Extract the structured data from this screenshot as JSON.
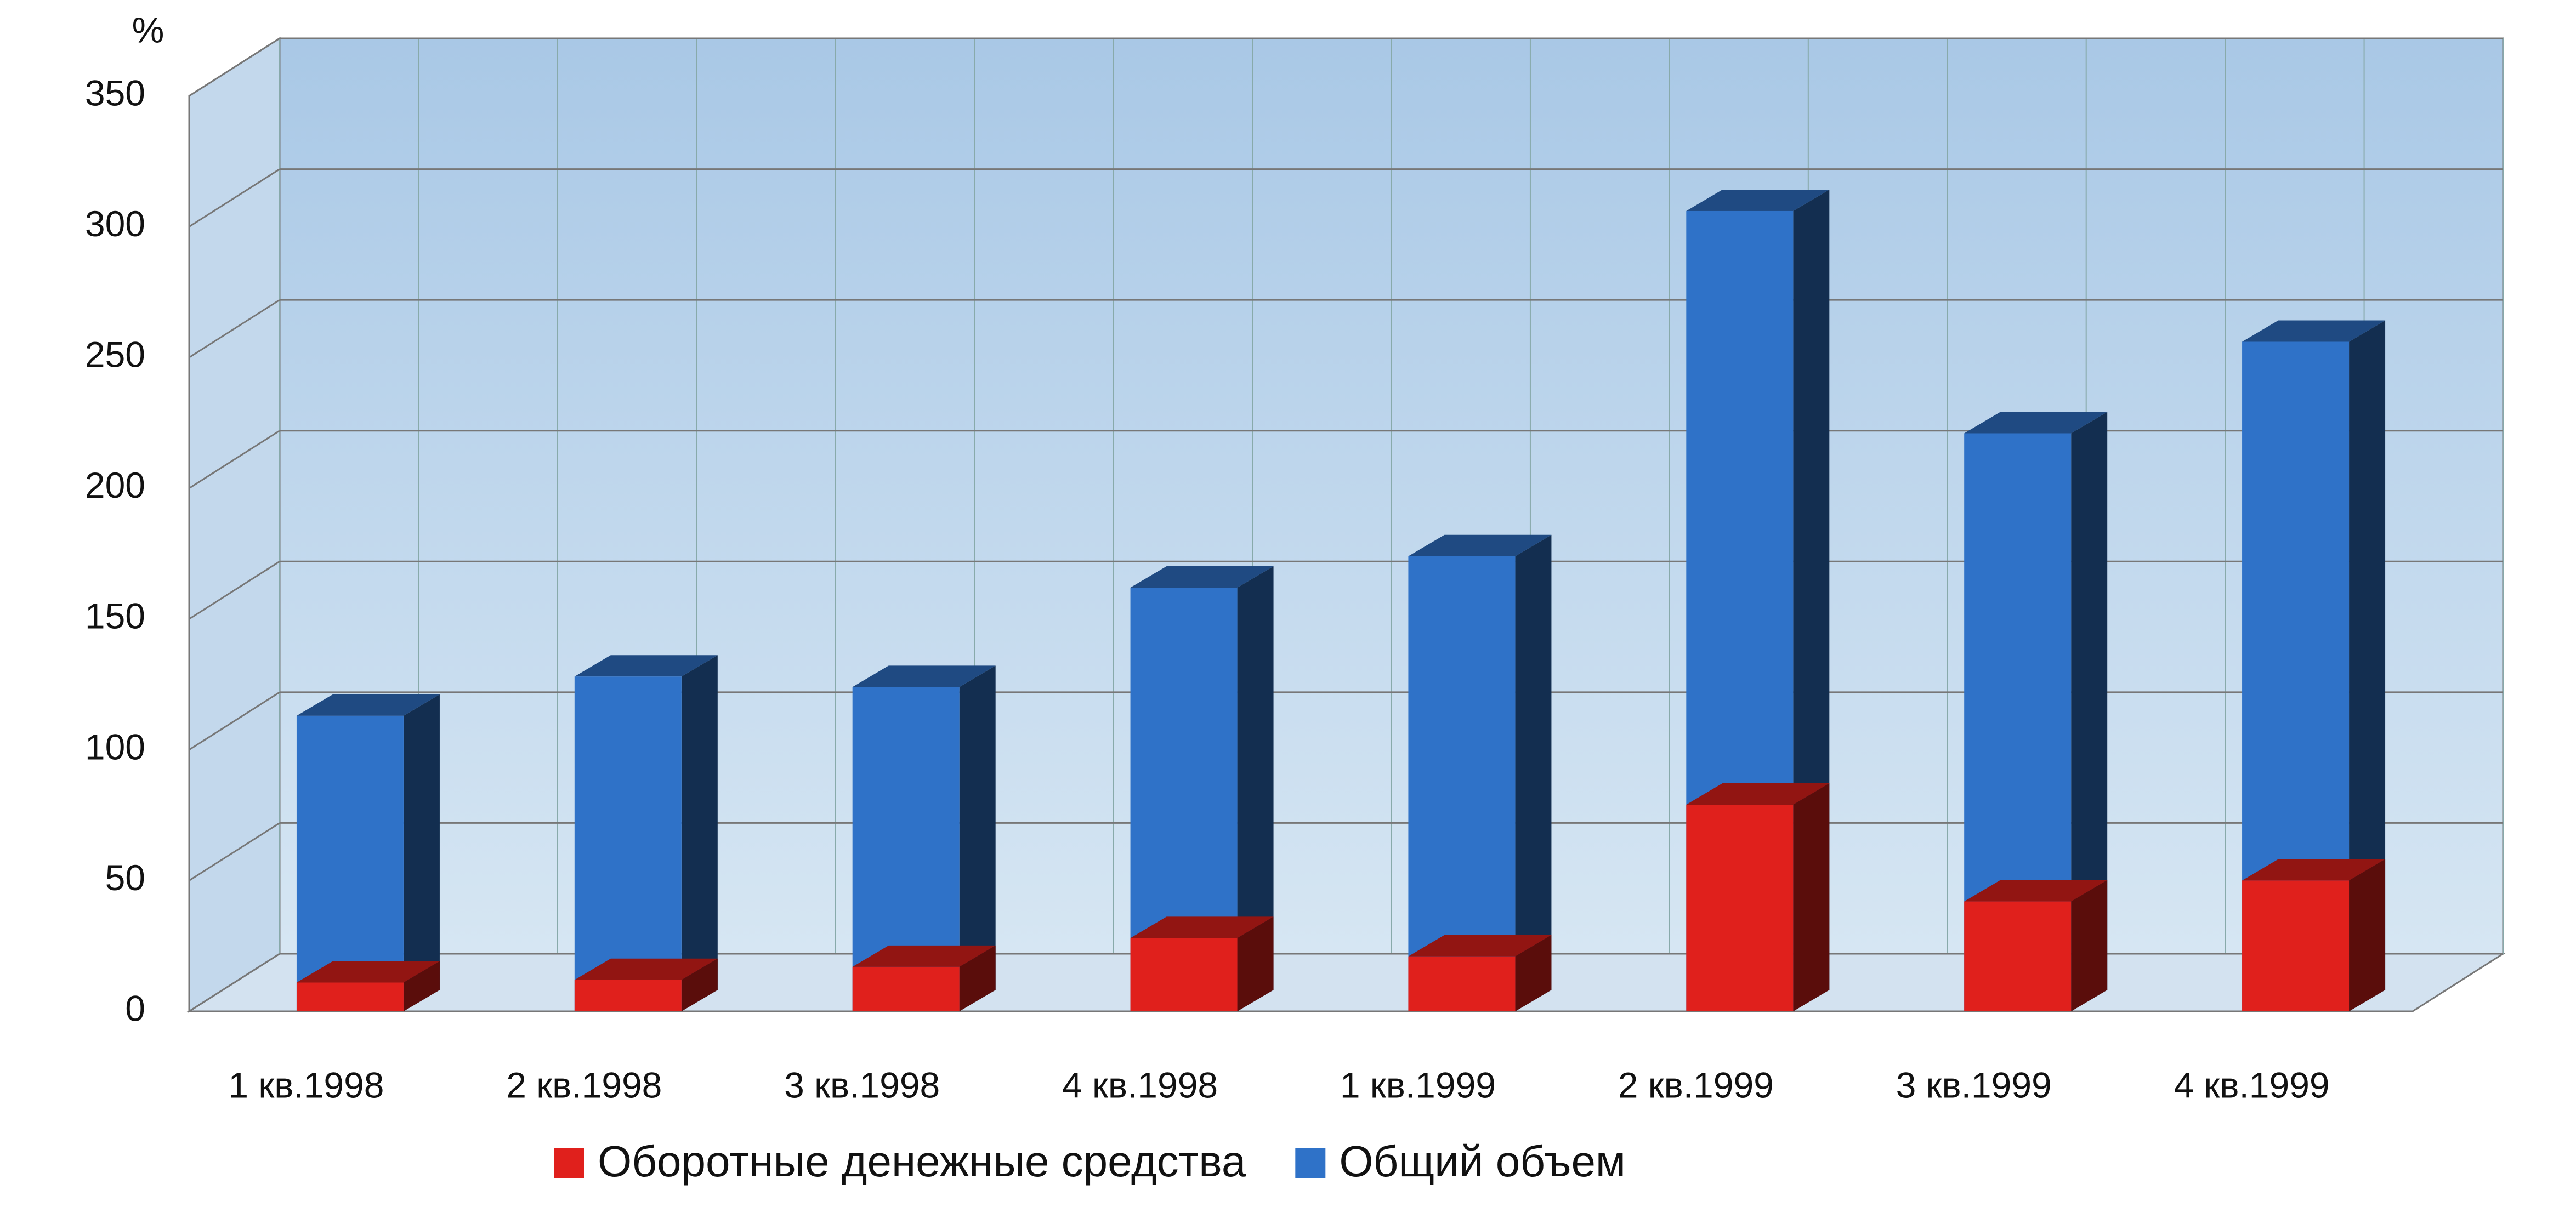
{
  "chart_data": {
    "type": "bar",
    "y_unit": "%",
    "categories": [
      "1 кв.1998",
      "2 кв.1998",
      "3 кв.1998",
      "4 кв.1998",
      "1 кв.1999",
      "2 кв.1999",
      "3 кв.1999",
      "4 кв.1999"
    ],
    "series": [
      {
        "name": "Оборотные денежные средства",
        "color": "#e0201c",
        "values": [
          11,
          12,
          17,
          28,
          21,
          79,
          42,
          50
        ]
      },
      {
        "name": "Общий объем",
        "color": "#2f72c8",
        "values": [
          113,
          128,
          124,
          162,
          174,
          306,
          221,
          256
        ]
      }
    ],
    "ylim": [
      0,
      350
    ],
    "yticks": [
      0,
      50,
      100,
      150,
      200,
      250,
      300,
      350
    ],
    "grid": true,
    "legend": "bottom"
  }
}
